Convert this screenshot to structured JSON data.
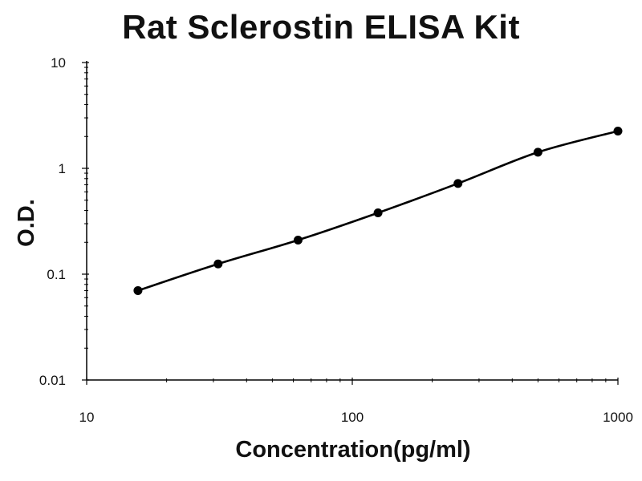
{
  "chart_data": {
    "type": "scatter",
    "title": "Rat Sclerostin ELISA Kit",
    "xlabel": "Concentration(pg/ml)",
    "ylabel": "O.D.",
    "x_scale": "log",
    "y_scale": "log",
    "xlim": [
      10,
      1000
    ],
    "ylim": [
      0.01,
      10
    ],
    "x_ticks": [
      {
        "value": 10,
        "label": "10"
      },
      {
        "value": 100,
        "label": "100"
      },
      {
        "value": 1000,
        "label": "1000"
      }
    ],
    "y_ticks": [
      {
        "value": 0.01,
        "label": "0.01"
      },
      {
        "value": 0.1,
        "label": "0.1"
      },
      {
        "value": 1,
        "label": "1"
      },
      {
        "value": 10,
        "label": "10"
      }
    ],
    "grid": false,
    "legend": "none",
    "series": [
      {
        "x": [
          15.6,
          31.25,
          62.5,
          125,
          250,
          500,
          1000
        ],
        "y": [
          0.07,
          0.125,
          0.21,
          0.38,
          0.72,
          1.42,
          2.25
        ],
        "fit_curve": true
      }
    ],
    "colors": {
      "points": "#000000",
      "line": "#000000",
      "axis": "#000000"
    }
  }
}
